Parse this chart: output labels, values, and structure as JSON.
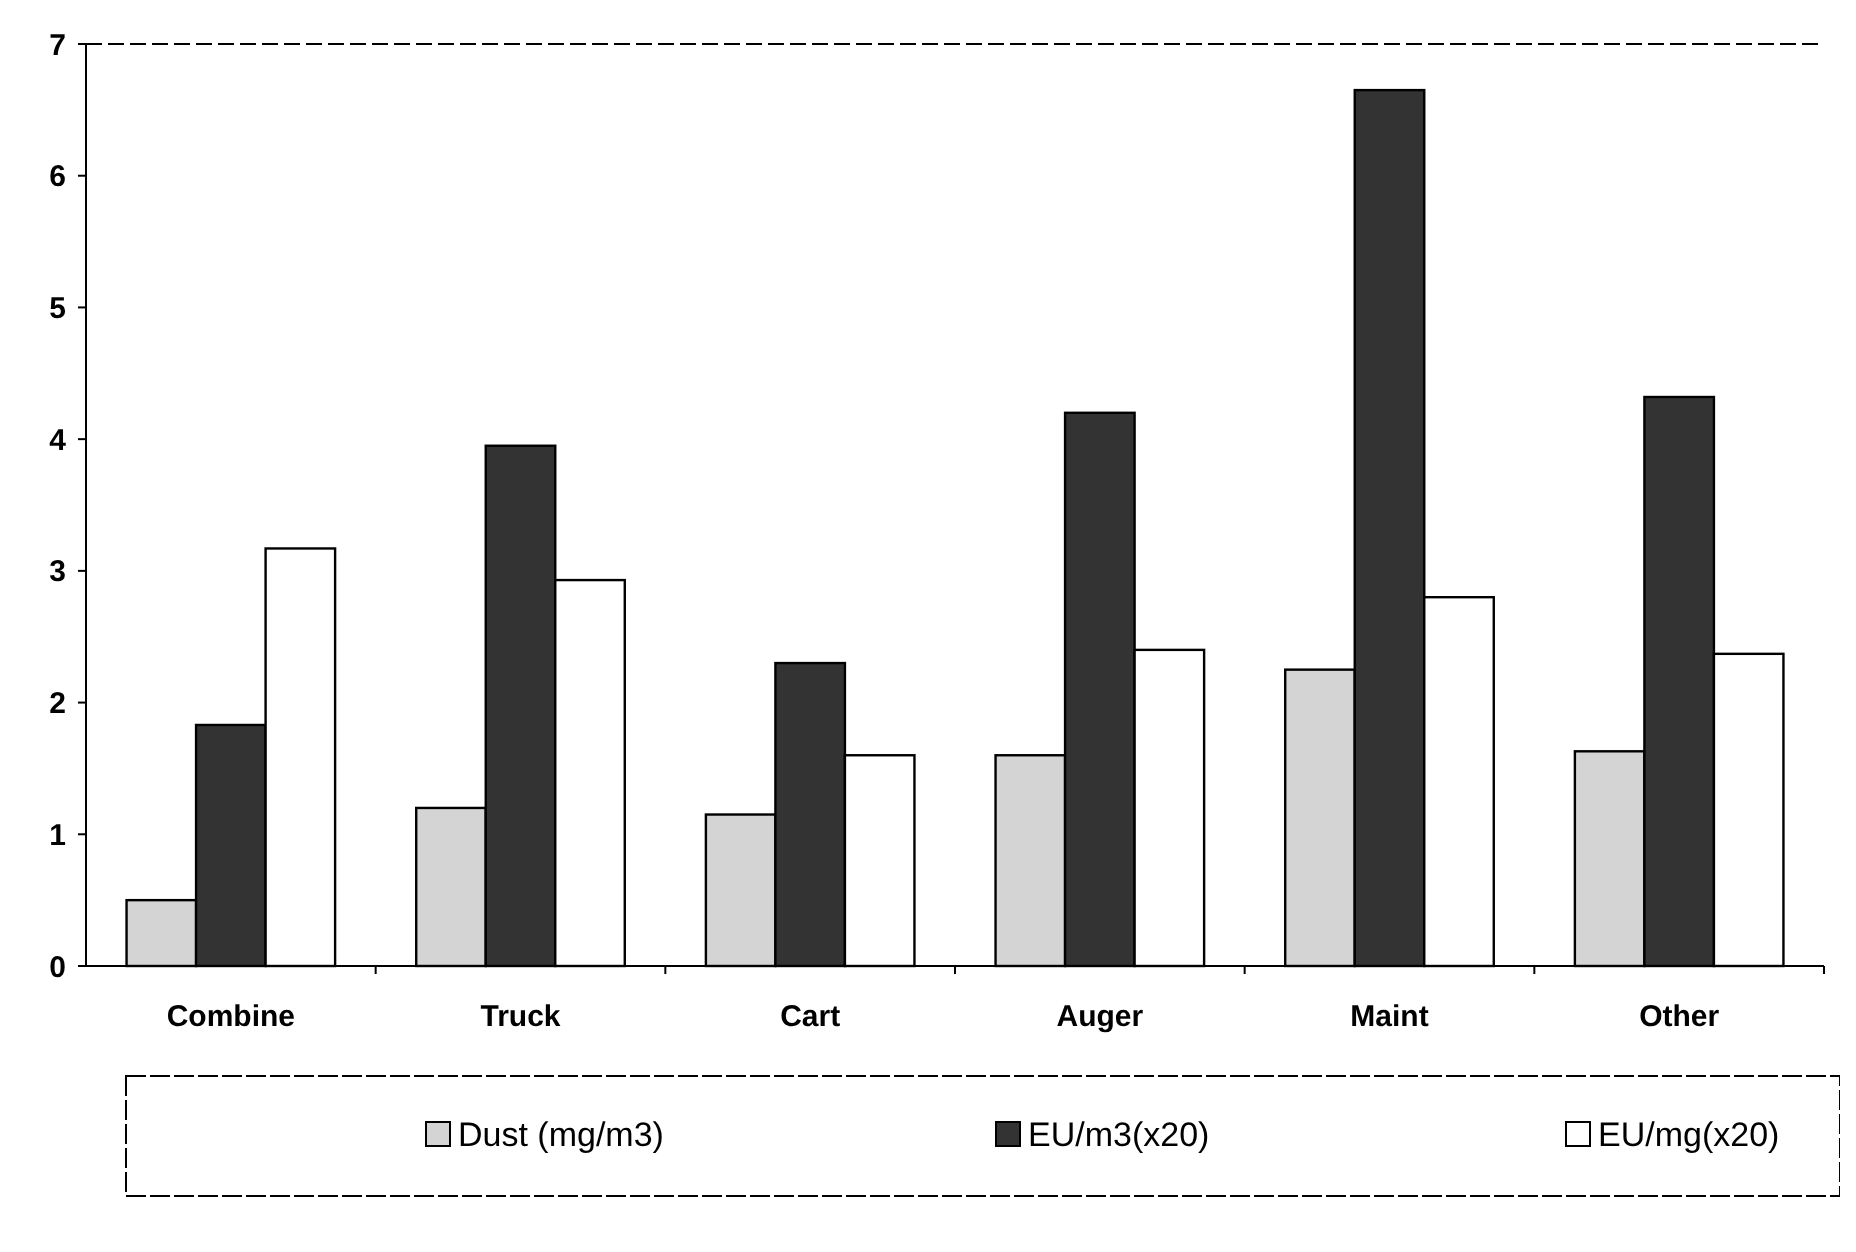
{
  "chart_data": {
    "type": "bar",
    "categories": [
      "Combine",
      "Truck",
      "Cart",
      "Auger",
      "Maint",
      "Other"
    ],
    "series": [
      {
        "name": "Dust (mg/m3)",
        "color": "#d4d4d4",
        "values": [
          0.5,
          1.2,
          1.15,
          1.6,
          2.25,
          1.63
        ]
      },
      {
        "name": "EU/m3(x20)",
        "color": "#333333",
        "values": [
          1.83,
          3.95,
          2.3,
          4.2,
          6.65,
          4.32
        ]
      },
      {
        "name": "EU/mg(x20)",
        "color": "#ffffff",
        "values": [
          3.17,
          2.93,
          1.6,
          2.4,
          2.8,
          2.37
        ]
      }
    ],
    "ylim": [
      0,
      7
    ],
    "yticks": [
      0,
      1,
      2,
      3,
      4,
      5,
      6,
      7
    ],
    "legend": "bottom",
    "grid": false
  }
}
